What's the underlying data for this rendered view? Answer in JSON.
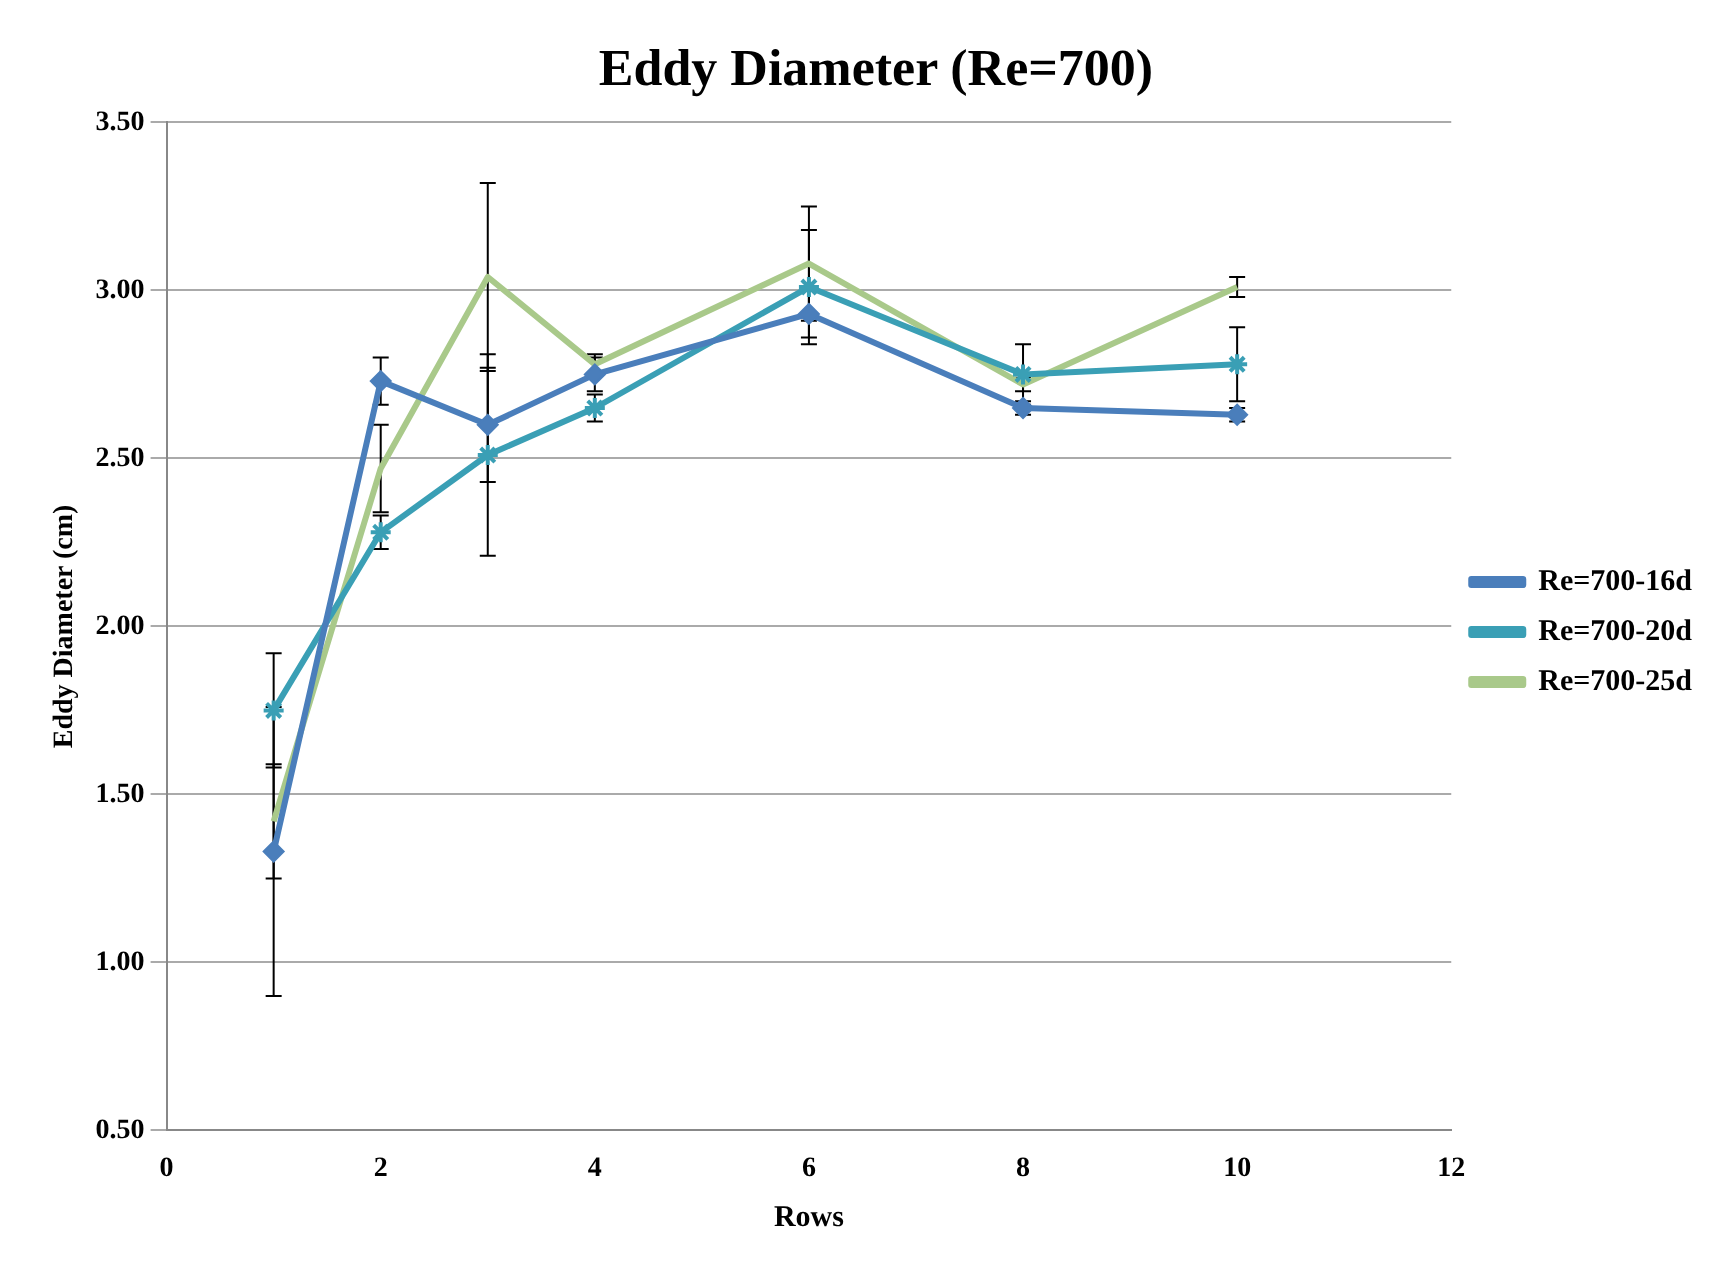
{
  "chart_data": {
    "type": "line",
    "title": "Eddy Diameter (Re=700)",
    "xlabel": "Rows",
    "ylabel": "Eddy Diameter (cm)",
    "x": [
      1,
      2,
      3,
      4,
      6,
      8,
      10
    ],
    "series": [
      {
        "name": "Re=700-16d",
        "color": "#4a7ebb",
        "marker": "diamond",
        "values": [
          1.33,
          2.73,
          2.6,
          2.75,
          2.93,
          2.65,
          2.63
        ],
        "errors": [
          0.43,
          0.07,
          0.17,
          0.05,
          0.07,
          0.02,
          0.02
        ]
      },
      {
        "name": "Re=700-20d",
        "color": "#3a9fb5",
        "marker": "cross",
        "values": [
          1.75,
          2.28,
          2.51,
          2.65,
          3.01,
          2.75,
          2.78
        ],
        "errors": [
          0.17,
          0.05,
          0.3,
          0.04,
          0.17,
          0.09,
          0.11
        ]
      },
      {
        "name": "Re=700-25d",
        "color": "#a9c98a",
        "marker": "none",
        "values": [
          1.42,
          2.47,
          3.04,
          2.78,
          3.08,
          2.72,
          3.01
        ],
        "errors": [
          0.17,
          0.13,
          0.28,
          0.03,
          0.17,
          0.02,
          0.03
        ]
      }
    ],
    "xlim": [
      0,
      12
    ],
    "xticks": [
      0,
      2,
      4,
      6,
      8,
      10,
      12
    ],
    "ylim": [
      0.5,
      3.5
    ],
    "yticks": [
      {
        "value": 0.5,
        "label": "0.50"
      },
      {
        "value": 1,
        "label": "1.00"
      },
      {
        "value": 1.5,
        "label": "1.50"
      },
      {
        "value": 2,
        "label": "2.00"
      },
      {
        "value": 2.5,
        "label": "2.50"
      },
      {
        "value": 3,
        "label": "3.00"
      },
      {
        "value": 3.5,
        "label": "3.50"
      }
    ],
    "grid": "y",
    "legend": "right",
    "line_style": "solid"
  }
}
